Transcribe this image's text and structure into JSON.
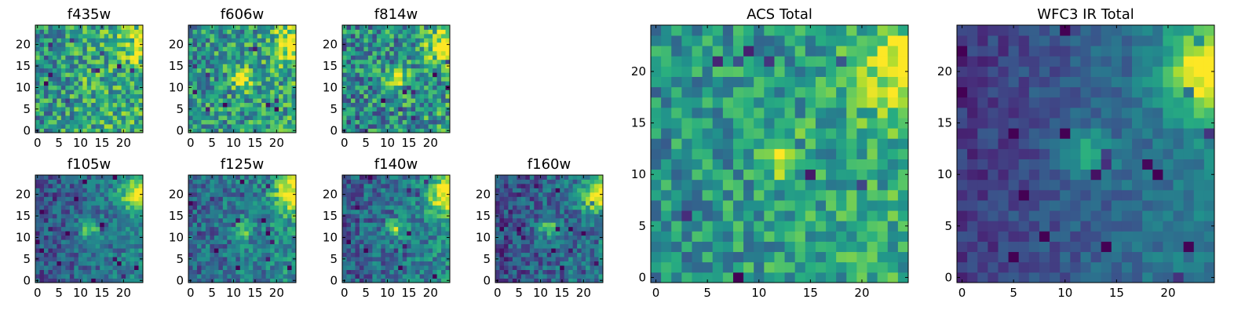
{
  "figure": {
    "colormap": "viridis",
    "colormap_stops": [
      "#440154",
      "#472d7b",
      "#3b528b",
      "#2c728e",
      "#21918c",
      "#28ae80",
      "#5ec962",
      "#addc30",
      "#fde725"
    ],
    "image_size": [
      25,
      25
    ],
    "axes_range": {
      "xlim": [
        -0.5,
        24.5
      ],
      "ylim": [
        -0.5,
        24.5
      ]
    }
  },
  "chart_data": [
    {
      "type": "heatmap",
      "title": "f435w",
      "xticks": [
        0,
        5,
        10,
        15,
        20
      ],
      "yticks": [
        0,
        5,
        10,
        15,
        20
      ],
      "pattern": {
        "base": 0.58,
        "noise": 0.28,
        "gradient": 0.12,
        "peak": 0.15,
        "corner_peak": 0.35
      }
    },
    {
      "type": "heatmap",
      "title": "f606w",
      "xticks": [
        0,
        5,
        10,
        15,
        20
      ],
      "yticks": [
        0,
        5,
        10,
        15,
        20
      ],
      "pattern": {
        "base": 0.55,
        "noise": 0.28,
        "gradient": 0.1,
        "peak": 0.42,
        "corner_peak": 0.5
      }
    },
    {
      "type": "heatmap",
      "title": "f814w",
      "xticks": [
        0,
        5,
        10,
        15,
        20
      ],
      "yticks": [
        0,
        5,
        10,
        15,
        20
      ],
      "pattern": {
        "base": 0.5,
        "noise": 0.3,
        "gradient": 0.1,
        "peak": 0.48,
        "corner_peak": 0.55
      }
    },
    {
      "type": "heatmap",
      "title": "f105w",
      "xticks": [
        0,
        5,
        10,
        15,
        20
      ],
      "yticks": [
        0,
        5,
        10,
        15,
        20
      ],
      "pattern": {
        "base": 0.35,
        "noise": 0.18,
        "gradient": 0.2,
        "peak": 0.4,
        "corner_peak": 0.65
      }
    },
    {
      "type": "heatmap",
      "title": "f125w",
      "xticks": [
        0,
        5,
        10,
        15,
        20
      ],
      "yticks": [
        0,
        5,
        10,
        15,
        20
      ],
      "pattern": {
        "base": 0.4,
        "noise": 0.2,
        "gradient": 0.18,
        "peak": 0.38,
        "corner_peak": 0.65
      }
    },
    {
      "type": "heatmap",
      "title": "f140w",
      "xticks": [
        0,
        5,
        10,
        15,
        20
      ],
      "yticks": [
        0,
        5,
        10,
        15,
        20
      ],
      "pattern": {
        "base": 0.38,
        "noise": 0.2,
        "gradient": 0.2,
        "peak": 0.42,
        "corner_peak": 0.65
      }
    },
    {
      "type": "heatmap",
      "title": "f160w",
      "xticks": [
        0,
        5,
        10,
        15,
        20
      ],
      "yticks": [
        0,
        5,
        10,
        15,
        20
      ],
      "pattern": {
        "base": 0.32,
        "noise": 0.2,
        "gradient": 0.18,
        "peak": 0.45,
        "corner_peak": 0.68
      }
    },
    {
      "type": "heatmap",
      "title": "ACS Total",
      "xticks": [
        0,
        5,
        10,
        15,
        20
      ],
      "yticks": [
        0,
        5,
        10,
        15,
        20
      ],
      "pattern": {
        "base": 0.55,
        "noise": 0.22,
        "gradient": 0.1,
        "peak": 0.45,
        "corner_peak": 0.45
      }
    },
    {
      "type": "heatmap",
      "title": "WFC3 IR Total",
      "xticks": [
        0,
        5,
        10,
        15,
        20
      ],
      "yticks": [
        0,
        5,
        10,
        15,
        20
      ],
      "pattern": {
        "base": 0.3,
        "noise": 0.1,
        "gradient": 0.28,
        "peak": 0.35,
        "corner_peak": 0.65
      }
    }
  ]
}
